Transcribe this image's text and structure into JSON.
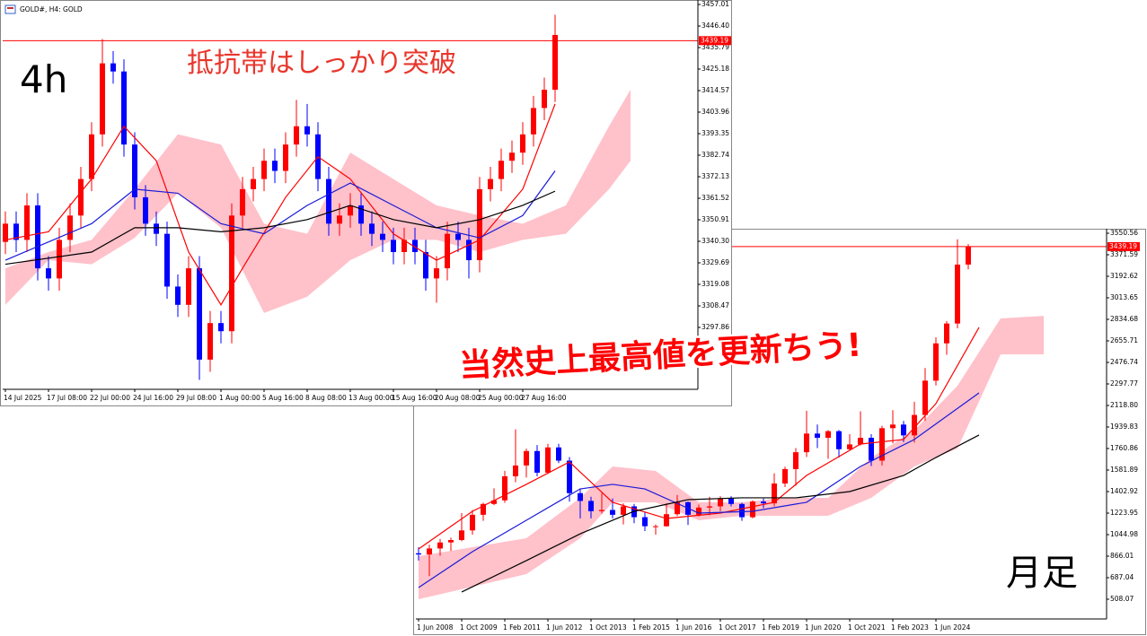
{
  "chart_data": [
    {
      "type": "candlestick",
      "title": "GOLD#, H4: GOLD",
      "annotations": [
        "4h",
        "抵抗帯はしっかり突破"
      ],
      "categories": [
        "14 Jul 2025",
        null,
        null,
        null,
        "17 Jul 08:00",
        null,
        null,
        null,
        "22 Jul 00:00",
        null,
        null,
        null,
        "24 Jul 16:00",
        null,
        null,
        null,
        "29 Jul 08:00",
        null,
        null,
        null,
        "1 Aug 00:00",
        null,
        null,
        null,
        "5 Aug 16:00",
        null,
        null,
        null,
        "8 Aug 08:00",
        null,
        null,
        null,
        "13 Aug 00:00",
        null,
        null,
        null,
        "15 Aug 16:00",
        null,
        null,
        null,
        "20 Aug 08:00",
        null,
        null,
        null,
        "25 Aug 00:00",
        null,
        null,
        null,
        "27 Aug 16:00",
        null,
        null,
        null
      ],
      "open": [
        3340,
        3349,
        3341,
        3358,
        3327,
        3322,
        3341,
        3353,
        3371,
        3393,
        3428,
        3424,
        3388,
        3362,
        3349,
        3344,
        3318,
        3309,
        3327,
        3282,
        3300,
        3296,
        3353,
        3366,
        3371,
        3380,
        3375,
        3388,
        3397,
        3393,
        3371,
        3349,
        3353,
        3358,
        3349,
        3344,
        3341,
        3335,
        3341,
        3335,
        3322,
        3327,
        3344,
        3341,
        3331,
        3366,
        3371,
        3380,
        3384,
        3393,
        3406,
        3415
      ],
      "high": [
        3355,
        3355,
        3364,
        3364,
        3333,
        3347,
        3359,
        3377,
        3399,
        3440,
        3434,
        3430,
        3394,
        3368,
        3355,
        3350,
        3324,
        3333,
        3333,
        3306,
        3306,
        3359,
        3372,
        3377,
        3386,
        3386,
        3394,
        3410,
        3408,
        3399,
        3377,
        3359,
        3364,
        3364,
        3355,
        3350,
        3347,
        3347,
        3347,
        3341,
        3333,
        3350,
        3350,
        3347,
        3372,
        3377,
        3386,
        3390,
        3399,
        3412,
        3421,
        3452
      ],
      "low": [
        3334,
        3335,
        3335,
        3321,
        3316,
        3316,
        3335,
        3347,
        3365,
        3387,
        3418,
        3382,
        3356,
        3343,
        3338,
        3312,
        3303,
        3303,
        3272,
        3276,
        3290,
        3290,
        3347,
        3360,
        3365,
        3369,
        3369,
        3382,
        3387,
        3365,
        3343,
        3343,
        3347,
        3343,
        3338,
        3335,
        3329,
        3329,
        3329,
        3316,
        3310,
        3321,
        3335,
        3322,
        3325,
        3360,
        3365,
        3374,
        3378,
        3387,
        3400,
        3409
      ],
      "close": [
        3349,
        3341,
        3358,
        3327,
        3322,
        3341,
        3353,
        3371,
        3393,
        3428,
        3424,
        3388,
        3362,
        3349,
        3344,
        3318,
        3309,
        3327,
        3282,
        3300,
        3296,
        3353,
        3366,
        3371,
        3380,
        3375,
        3388,
        3397,
        3393,
        3371,
        3349,
        3353,
        3358,
        3349,
        3344,
        3341,
        3335,
        3341,
        3335,
        3322,
        3327,
        3344,
        3341,
        3331,
        3366,
        3371,
        3380,
        3384,
        3393,
        3406,
        3415,
        3442
      ],
      "up_color": "#ff0000",
      "down_color": "#0000ff",
      "lines": [
        {
          "color": "#ff0000",
          "x": [
            0,
            4,
            8,
            11,
            14,
            17,
            20,
            22,
            26,
            29,
            32,
            36,
            40,
            44,
            48,
            51
          ],
          "values": [
            3341,
            3345,
            3371,
            3397,
            3380,
            3335,
            3309,
            3327,
            3362,
            3382,
            3371,
            3344,
            3331,
            3341,
            3366,
            3408
          ]
        },
        {
          "color": "#1a1ad8",
          "x": [
            0,
            8,
            12,
            16,
            20,
            24,
            28,
            32,
            36,
            40,
            44,
            48,
            51
          ],
          "values": [
            3331,
            3349,
            3366,
            3364,
            3349,
            3344,
            3358,
            3369,
            3358,
            3347,
            3342,
            3353,
            3375
          ]
        },
        {
          "color": "#000000",
          "x": [
            0,
            8,
            12,
            16,
            20,
            24,
            28,
            32,
            36,
            40,
            44,
            48,
            51
          ],
          "values": [
            3329,
            3335,
            3347,
            3347,
            3345,
            3347,
            3351,
            3358,
            3351,
            3347,
            3351,
            3358,
            3365
          ]
        }
      ],
      "cloud": {
        "color": "#ffb6c1",
        "x": [
          0,
          4,
          8,
          12,
          16,
          20,
          24,
          28,
          32,
          36,
          40,
          44,
          48,
          52,
          56,
          58
        ],
        "upper": [
          3327,
          3335,
          3341,
          3366,
          3393,
          3388,
          3349,
          3344,
          3384,
          3371,
          3358,
          3353,
          3349,
          3358,
          3397,
          3415
        ],
        "lower": [
          3309,
          3331,
          3329,
          3342,
          3364,
          3347,
          3305,
          3313,
          3331,
          3341,
          3341,
          3335,
          3341,
          3344,
          3366,
          3380
        ]
      },
      "current_price": 3439.19,
      "current_price_color": "#ff0000",
      "ylim": [
        3267.36,
        3458.34
      ],
      "yticks": [
        3457.01,
        {
          "value": 3446.4,
          "label": "3446.40"
        },
        3435.79,
        3425.18,
        3414.57,
        3403.96,
        3393.35,
        3382.74,
        3372.13,
        3361.52,
        3350.91,
        {
          "value": 3340.3,
          "label": "3340.30"
        },
        3329.69,
        3319.08,
        3308.47,
        3297.86
      ],
      "grid": false
    },
    {
      "type": "candlestick",
      "annotations": [
        "当然史上最高値を更新ちう!",
        "月足"
      ],
      "categories": [
        "1 Jun 2008",
        null,
        null,
        null,
        "1 Oct 2009",
        null,
        null,
        null,
        "1 Feb 2011",
        null,
        null,
        null,
        "1 Jun 2012",
        null,
        null,
        null,
        "1 Oct 2013",
        null,
        null,
        null,
        "1 Feb 2015",
        null,
        null,
        null,
        "1 Jun 2016",
        null,
        null,
        null,
        "1 Oct 2017",
        null,
        null,
        null,
        "1 Feb 2019",
        null,
        null,
        null,
        "1 Jun 2020",
        null,
        null,
        null,
        "1 Oct 2021",
        null,
        null,
        null,
        "1 Feb 2023",
        null,
        null,
        null,
        "1 Jun 2024",
        null,
        null,
        null
      ],
      "open": [
        890,
        880,
        930,
        980,
        1000,
        1080,
        1210,
        1300,
        1330,
        1530,
        1620,
        1740,
        1560,
        1770,
        1660,
        1390,
        1325,
        1240,
        1250,
        1210,
        1280,
        1190,
        1115,
        1115,
        1215,
        1315,
        1210,
        1270,
        1280,
        1345,
        1300,
        1190,
        1320,
        1305,
        1470,
        1590,
        1730,
        1885,
        1850,
        1905,
        1755,
        1795,
        1850,
        1660,
        1930,
        1960,
        1870,
        2040,
        2325,
        2635,
        2800,
        3290
      ],
      "high": [
        940,
        960,
        1010,
        1020,
        1225,
        1250,
        1310,
        1430,
        1575,
        1920,
        1760,
        1790,
        1800,
        1800,
        1690,
        1430,
        1360,
        1390,
        1345,
        1305,
        1300,
        1235,
        1130,
        1305,
        1375,
        1320,
        1295,
        1360,
        1365,
        1365,
        1310,
        1330,
        1345,
        1555,
        1610,
        1765,
        2075,
        1960,
        1915,
        1915,
        1880,
        2070,
        1880,
        1950,
        2080,
        1990,
        2150,
        2430,
        2685,
        2820,
        3500,
        3460
      ],
      "low": [
        830,
        700,
        870,
        910,
        990,
        1045,
        1160,
        1290,
        1310,
        1480,
        1520,
        1530,
        1550,
        1640,
        1320,
        1180,
        1180,
        1220,
        1180,
        1130,
        1140,
        1075,
        1045,
        1110,
        1200,
        1125,
        1195,
        1205,
        1240,
        1280,
        1160,
        1180,
        1265,
        1280,
        1440,
        1450,
        1690,
        1765,
        1675,
        1685,
        1750,
        1785,
        1615,
        1620,
        1805,
        1815,
        1810,
        1990,
        2285,
        2540,
        2760,
        3250
      ],
      "close": [
        880,
        930,
        980,
        1000,
        1080,
        1210,
        1300,
        1330,
        1530,
        1620,
        1740,
        1560,
        1770,
        1660,
        1390,
        1325,
        1240,
        1250,
        1210,
        1280,
        1190,
        1115,
        1115,
        1215,
        1315,
        1210,
        1270,
        1280,
        1345,
        1300,
        1190,
        1320,
        1305,
        1470,
        1590,
        1730,
        1885,
        1850,
        1905,
        1755,
        1795,
        1850,
        1660,
        1930,
        1960,
        1870,
        2040,
        2325,
        2635,
        2800,
        3290,
        3440
      ],
      "up_color": "#ff0000",
      "down_color": "#0000ff",
      "lines": [
        {
          "color": "#ff0000",
          "x": [
            0,
            5,
            10,
            14,
            18,
            23,
            28,
            33,
            36,
            41,
            45,
            48,
            52
          ],
          "values": [
            926,
            1239,
            1463,
            1649,
            1314,
            1179,
            1224,
            1314,
            1537,
            1798,
            1836,
            2134,
            2768
          ]
        },
        {
          "color": "#1a1ad8",
          "x": [
            0,
            5,
            10,
            15,
            18,
            21,
            26,
            31,
            36,
            41,
            46,
            52
          ],
          "values": [
            605,
            903,
            1164,
            1425,
            1463,
            1425,
            1224,
            1239,
            1314,
            1612,
            1836,
            2223
          ]
        },
        {
          "color": "#000000",
          "x": [
            4,
            10,
            15,
            20,
            25,
            30,
            35,
            40,
            45,
            48,
            52
          ],
          "values": [
            568,
            829,
            1052,
            1239,
            1336,
            1351,
            1351,
            1403,
            1537,
            1686,
            1873
          ]
        }
      ],
      "cloud": {
        "color": "#ffb6c1",
        "x": [
          0,
          10,
          15,
          18,
          22,
          26,
          30,
          34,
          38,
          42,
          46,
          50,
          54,
          58
        ],
        "upper": [
          866,
          1015,
          1351,
          1612,
          1574,
          1313,
          1313,
          1351,
          1351,
          1686,
          1910,
          2283,
          2842,
          2864
        ],
        "lower": [
          508,
          717,
          1015,
          1313,
          1313,
          1164,
          1202,
          1202,
          1202,
          1351,
          1612,
          1761,
          2544,
          2544
        ]
      },
      "current_price": 3439.19,
      "current_price_color": "#ff0000",
      "ylim": [
        344.0,
        3572.9
      ],
      "yticks": [
        3550.56,
        3371.59,
        3192.62,
        3013.65,
        2834.68,
        2655.71,
        2476.74,
        2297.77,
        {
          "value": 2118.8,
          "label": "2118.80"
        },
        1939.83,
        1760.86,
        1581.89,
        1402.92,
        1223.95,
        1044.98,
        866.01,
        687.04,
        508.07
      ],
      "grid": false
    }
  ]
}
